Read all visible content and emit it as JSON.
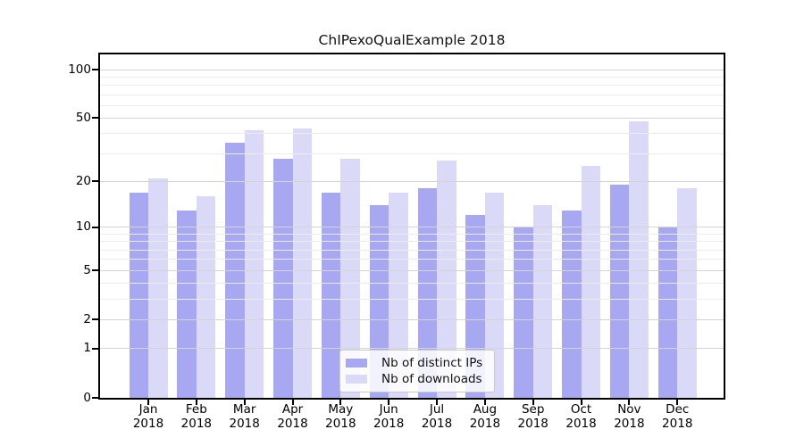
{
  "chart_data": {
    "type": "bar",
    "title": "ChIPexoQualExample 2018",
    "categories": [
      "Jan",
      "Feb",
      "Mar",
      "Apr",
      "May",
      "Jun",
      "Jul",
      "Aug",
      "Sep",
      "Oct",
      "Nov",
      "Dec"
    ],
    "x_year_label": "2018",
    "series": [
      {
        "name": "Nb of distinct IPs",
        "color": "#a8a8f2",
        "values": [
          17,
          13,
          35,
          28,
          17,
          14,
          18,
          12,
          10,
          13,
          19,
          10
        ]
      },
      {
        "name": "Nb of downloads",
        "color": "#dadaf8",
        "values": [
          21,
          16,
          42,
          43,
          28,
          17,
          27,
          17,
          14,
          25,
          48,
          18
        ]
      }
    ],
    "yscale": "log1p",
    "ylim": [
      0,
      125
    ],
    "y_tick_values": [
      0,
      1,
      2,
      5,
      10,
      20,
      50,
      100
    ],
    "y_minor_grid_values": [
      3,
      4,
      6,
      7,
      8,
      9,
      30,
      40,
      60,
      70,
      80,
      90
    ],
    "grid": true,
    "legend_position": "lower center",
    "colors": {
      "spine": "#000000",
      "major_grid": "#d4d4d4",
      "minor_grid": "#ececec",
      "legend_border": "#c9c9c9",
      "background": "#ffffff",
      "text": "#111111"
    }
  }
}
